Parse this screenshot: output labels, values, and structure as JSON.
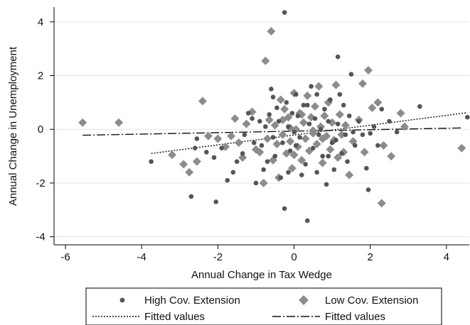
{
  "chart_data": {
    "type": "scatter",
    "xlabel": "Annual Change in Tax Wedge",
    "ylabel": "Annual Change in Unemployment",
    "xlim": [
      -6.3,
      4.6
    ],
    "ylim": [
      -4.3,
      4.55
    ],
    "xticks": [
      -6,
      -4,
      -2,
      0,
      2,
      4
    ],
    "yticks": [
      -4,
      -2,
      0,
      2,
      4
    ],
    "grid": "horizontal",
    "legend_position": "bottom",
    "colors": {
      "high": "#555555",
      "low": "#8c8c8c",
      "fit": "#111111"
    },
    "series": [
      {
        "name": "High Cov. Extension",
        "marker": "circle",
        "points": [
          [
            -3.75,
            -1.2
          ],
          [
            -2.7,
            -2.5
          ],
          [
            -2.55,
            -0.35
          ],
          [
            -2.6,
            -0.7
          ],
          [
            -2.3,
            -0.85
          ],
          [
            -2.1,
            -1.05
          ],
          [
            -2.05,
            -2.7
          ],
          [
            -1.9,
            -0.7
          ],
          [
            -1.75,
            -1.9
          ],
          [
            -1.6,
            -1.6
          ],
          [
            -1.5,
            -1.2
          ],
          [
            -1.35,
            -0.9
          ],
          [
            -1.3,
            -0.2
          ],
          [
            -1.2,
            0.6
          ],
          [
            -1.1,
            0.4
          ],
          [
            -1.05,
            -0.5
          ],
          [
            -1.0,
            -2.0
          ],
          [
            -0.9,
            0.3
          ],
          [
            -0.85,
            -0.6
          ],
          [
            -0.8,
            -1.5
          ],
          [
            -0.75,
            0.1
          ],
          [
            -0.7,
            -1.2
          ],
          [
            -0.65,
            0.55
          ],
          [
            -0.6,
            1.5
          ],
          [
            -0.55,
            -0.3
          ],
          [
            -0.5,
            -1.0
          ],
          [
            -0.45,
            0.8
          ],
          [
            -0.4,
            0.3
          ],
          [
            -0.35,
            -1.8
          ],
          [
            -0.3,
            -0.5
          ],
          [
            -0.25,
            -2.95
          ],
          [
            -0.25,
            4.35
          ],
          [
            -0.2,
            1.0
          ],
          [
            -0.15,
            -1.6
          ],
          [
            -0.1,
            -0.8
          ],
          [
            -0.05,
            0.6
          ],
          [
            0.0,
            -0.1
          ],
          [
            0.05,
            1.3
          ],
          [
            0.1,
            0.5
          ],
          [
            0.15,
            -0.3
          ],
          [
            0.2,
            -1.7
          ],
          [
            0.25,
            0.9
          ],
          [
            0.3,
            -1.3
          ],
          [
            0.35,
            -3.4
          ],
          [
            0.4,
            0.2
          ],
          [
            0.45,
            1.6
          ],
          [
            0.5,
            -0.7
          ],
          [
            0.55,
            0.4
          ],
          [
            0.6,
            1.3
          ],
          [
            0.65,
            -0.2
          ],
          [
            0.7,
            0.0
          ],
          [
            0.75,
            -1.0
          ],
          [
            0.8,
            0.75
          ],
          [
            0.85,
            -2.05
          ],
          [
            0.9,
            0.3
          ],
          [
            0.95,
            1.1
          ],
          [
            1.0,
            -0.5
          ],
          [
            1.05,
            -1.5
          ],
          [
            1.1,
            -0.4
          ],
          [
            1.15,
            0.2
          ],
          [
            1.2,
            1.3
          ],
          [
            1.25,
            -0.9
          ],
          [
            1.3,
            0.9
          ],
          [
            1.35,
            -0.2
          ],
          [
            1.4,
            -1.2
          ],
          [
            1.45,
            0.5
          ],
          [
            1.5,
            2.05
          ],
          [
            1.55,
            -0.1
          ],
          [
            1.6,
            -0.6
          ],
          [
            1.7,
            0.3
          ],
          [
            1.8,
            -0.2
          ],
          [
            1.9,
            -1.45
          ],
          [
            1.95,
            -2.25
          ],
          [
            2.0,
            -0.15
          ],
          [
            2.1,
            0.1
          ],
          [
            2.2,
            -0.6
          ],
          [
            2.3,
            0.75
          ],
          [
            2.5,
            0.3
          ],
          [
            2.7,
            -0.1
          ],
          [
            3.3,
            0.85
          ],
          [
            4.55,
            0.45
          ],
          [
            1.15,
            2.7
          ],
          [
            -0.55,
            1.2
          ],
          [
            0.05,
            -0.6
          ],
          [
            0.35,
            0.9
          ],
          [
            -0.15,
            0.1
          ],
          [
            0.6,
            -1.6
          ],
          [
            0.9,
            -1.0
          ]
        ]
      },
      {
        "name": "Low Cov. Extension",
        "marker": "diamond",
        "points": [
          [
            -5.55,
            0.25
          ],
          [
            -4.6,
            0.25
          ],
          [
            -3.2,
            -0.95
          ],
          [
            -2.9,
            -1.3
          ],
          [
            -2.75,
            -1.6
          ],
          [
            -2.55,
            -1.2
          ],
          [
            -2.4,
            1.05
          ],
          [
            -2.25,
            -0.25
          ],
          [
            -2.0,
            -0.35
          ],
          [
            -1.8,
            -0.65
          ],
          [
            -1.65,
            -0.25
          ],
          [
            -1.55,
            0.4
          ],
          [
            -1.45,
            -0.5
          ],
          [
            -1.35,
            -1.05
          ],
          [
            -1.25,
            0.2
          ],
          [
            -1.1,
            0.65
          ],
          [
            -1.0,
            -0.75
          ],
          [
            -0.9,
            -0.85
          ],
          [
            -0.8,
            -2.0
          ],
          [
            -0.75,
            2.55
          ],
          [
            -0.7,
            -0.35
          ],
          [
            -0.65,
            0.35
          ],
          [
            -0.6,
            3.65
          ],
          [
            -0.55,
            -1.15
          ],
          [
            -0.5,
            0.15
          ],
          [
            -0.45,
            -0.55
          ],
          [
            -0.4,
            -1.8
          ],
          [
            -0.35,
            1.1
          ],
          [
            -0.3,
            -0.2
          ],
          [
            -0.25,
            0.75
          ],
          [
            -0.2,
            -0.9
          ],
          [
            -0.15,
            0.45
          ],
          [
            -0.1,
            -0.45
          ],
          [
            -0.05,
            -1.45
          ],
          [
            0.0,
            1.35
          ],
          [
            0.05,
            0.0
          ],
          [
            0.1,
            -0.65
          ],
          [
            0.15,
            0.6
          ],
          [
            0.2,
            -1.15
          ],
          [
            0.25,
            0.25
          ],
          [
            0.3,
            -0.35
          ],
          [
            0.35,
            1.25
          ],
          [
            0.4,
            -0.8
          ],
          [
            0.45,
            0.45
          ],
          [
            0.5,
            -0.15
          ],
          [
            0.55,
            0.85
          ],
          [
            0.6,
            -0.55
          ],
          [
            0.65,
            1.6
          ],
          [
            0.7,
            0.1
          ],
          [
            0.75,
            -1.25
          ],
          [
            0.8,
            0.5
          ],
          [
            0.85,
            -0.25
          ],
          [
            0.9,
            1.0
          ],
          [
            0.95,
            -0.75
          ],
          [
            1.0,
            0.25
          ],
          [
            1.05,
            -0.4
          ],
          [
            1.1,
            1.65
          ],
          [
            1.15,
            -1.05
          ],
          [
            1.2,
            0.55
          ],
          [
            1.25,
            -0.2
          ],
          [
            1.3,
            -0.85
          ],
          [
            1.35,
            0.15
          ],
          [
            1.45,
            -1.7
          ],
          [
            1.55,
            -0.45
          ],
          [
            1.7,
            0.35
          ],
          [
            1.8,
            1.7
          ],
          [
            1.85,
            -0.85
          ],
          [
            1.95,
            2.2
          ],
          [
            2.05,
            0.8
          ],
          [
            2.2,
            1.0
          ],
          [
            2.3,
            -2.75
          ],
          [
            2.35,
            -0.6
          ],
          [
            2.55,
            -1.0
          ],
          [
            2.8,
            0.6
          ],
          [
            2.9,
            0.1
          ],
          [
            4.4,
            -0.7
          ],
          [
            0.0,
            -0.95
          ],
          [
            -0.3,
            0.35
          ],
          [
            0.5,
            -0.05
          ],
          [
            0.75,
            -0.35
          ],
          [
            -0.1,
            0.05
          ],
          [
            0.2,
            0.55
          ]
        ]
      }
    ],
    "fits": [
      {
        "name": "Fitted values",
        "style": "dotted",
        "x": [
          -3.75,
          4.55
        ],
        "y": [
          -0.9,
          0.62
        ]
      },
      {
        "name": "Fitted values",
        "style": "dash-dot",
        "x": [
          -5.55,
          4.4
        ],
        "y": [
          -0.22,
          0.05
        ]
      }
    ],
    "legend": {
      "items": [
        {
          "label": "High Cov. Extension",
          "symbol": "circle"
        },
        {
          "label": "Low Cov. Extension",
          "symbol": "diamond"
        },
        {
          "label": "Fitted values",
          "symbol": "dotted"
        },
        {
          "label": "Fitted values",
          "symbol": "dash-dot"
        }
      ]
    }
  }
}
